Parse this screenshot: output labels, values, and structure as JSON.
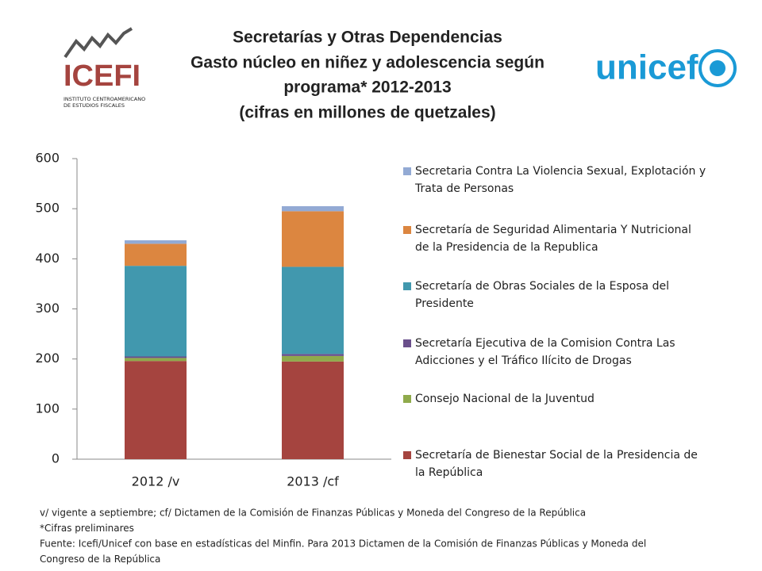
{
  "chart_data": {
    "type": "stacked_bar",
    "title": [
      "Secretarías y Otras Dependencias",
      "Gasto núcleo en niñez y adolescencia según",
      "programa* 2012-2013",
      "(cifras en millones de quetzales)"
    ],
    "logos": {
      "left": "ICEFI",
      "left_sub": [
        "INSTITUTO CENTROAMERICANO",
        "DE ESTUDIOS FISCALES"
      ],
      "right": "unicef"
    },
    "categories": [
      "2012 /v",
      "2013 /cf"
    ],
    "series": [
      {
        "name": [
          "Secretaría de Bienestar Social de la Presidencia de",
          "la República"
        ],
        "color": "#a5443f",
        "values": [
          196,
          195
        ]
      },
      {
        "name": [
          "Consejo Nacional de la Juventud"
        ],
        "color": "#8faa4b",
        "values": [
          6,
          11
        ]
      },
      {
        "name": [
          "Secretaría Ejecutiva de la Comision Contra Las",
          "Adicciones y el Tráfico Ilícito de Drogas"
        ],
        "color": "#6a4f8b",
        "values": [
          3,
          4
        ]
      },
      {
        "name": [
          "Secretaría de Obras Sociales de la Esposa del",
          "Presidente"
        ],
        "color": "#4198ae",
        "values": [
          181,
          174
        ]
      },
      {
        "name": [
          "Secretaría de Seguridad Alimentaria Y Nutricional",
          "de la Presidencia de la Republica"
        ],
        "color": "#dc8640",
        "values": [
          44,
          111
        ]
      },
      {
        "name": [
          "Secretaria Contra La Violencia Sexual, Explotación y",
          "Trata de Personas"
        ],
        "color": "#93aad4",
        "values": [
          7,
          10
        ]
      }
    ],
    "ylim": [
      0,
      600
    ],
    "yticks": [
      0,
      100,
      200,
      300,
      400,
      500,
      600
    ],
    "grid": false,
    "legend": "right",
    "footnotes": [
      "v/ vigente a septiembre; cf/ Dictamen de la Comisión de Finanzas Públicas y Moneda del Congreso de la República",
      "*Cifras preliminares",
      "Fuente: Icefi/Unicef con base en estadísticas del Minfin.  Para 2013 Dictamen de la Comisión de Finanzas Públicas y Moneda del",
      "Congreso de la República"
    ]
  }
}
